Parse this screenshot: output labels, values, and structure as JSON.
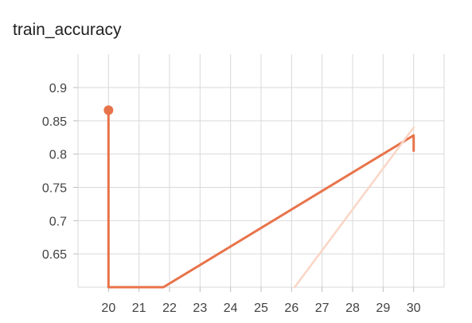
{
  "chart_data": {
    "type": "line",
    "title": "train_accuracy",
    "xlabel": "",
    "ylabel": "",
    "x_ticks": [
      20,
      21,
      22,
      23,
      24,
      25,
      26,
      27,
      28,
      29,
      30
    ],
    "y_ticks": [
      0.65,
      0.7,
      0.75,
      0.8,
      0.85,
      0.9
    ],
    "xlim": [
      19.0,
      31.0
    ],
    "ylim": [
      0.6,
      0.9
    ],
    "grid": true,
    "colors": {
      "smoothed": "#e8734a",
      "raw": "#f9d6c6",
      "grid": "#d9d9d9"
    },
    "series": [
      {
        "role": "smoothed",
        "x": [
          20,
          20,
          21.8,
          30,
          30
        ],
        "y": [
          0.866,
          0.6,
          0.6,
          0.828,
          0.805
        ]
      },
      {
        "role": "raw",
        "x": [
          26.1,
          30
        ],
        "y": [
          0.6,
          0.84
        ]
      }
    ],
    "marker": {
      "x": 20,
      "y": 0.866
    }
  }
}
